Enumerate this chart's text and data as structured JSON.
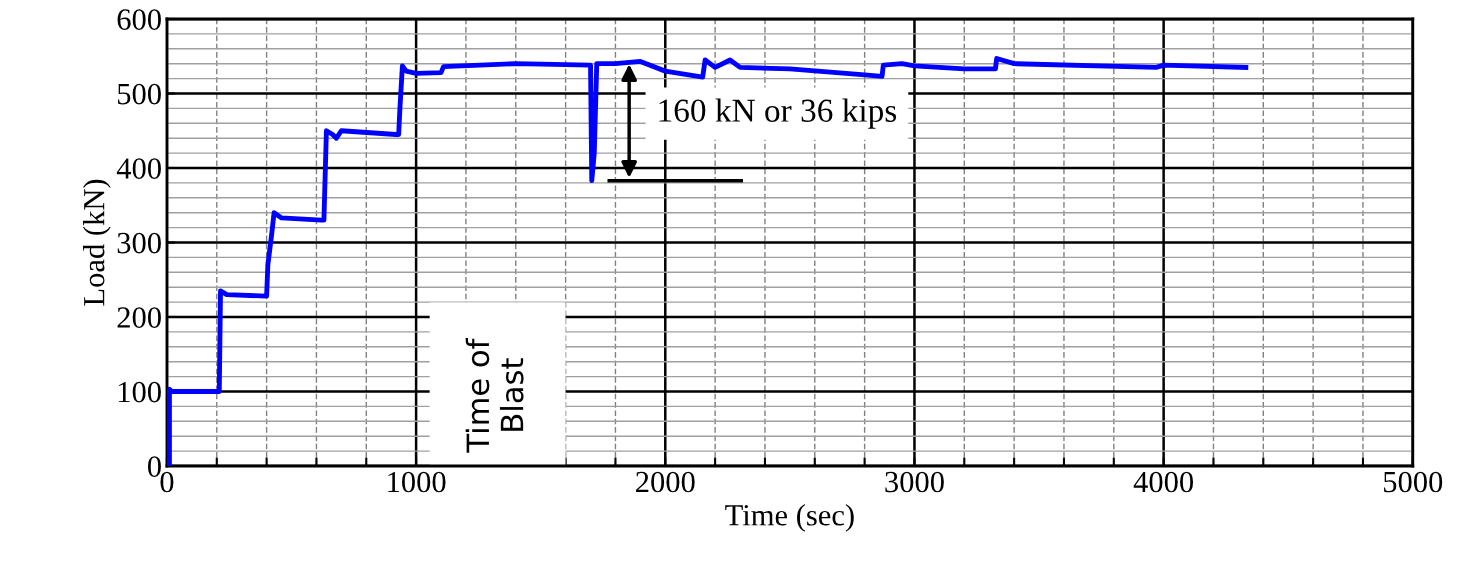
{
  "chart_data": {
    "type": "line",
    "xlabel": "Time (sec)",
    "ylabel": "Load (kN)",
    "xlim": [
      0,
      5000
    ],
    "ylim": [
      0,
      600
    ],
    "xticks": [
      0,
      {
        "value": 200,
        "label": null
      },
      {
        "value": 400,
        "label": null
      },
      {
        "value": 600,
        "label": null
      },
      {
        "value": 800,
        "label": null
      },
      1000,
      {
        "value": 1200,
        "label": null
      },
      {
        "value": 1400,
        "label": null
      },
      {
        "value": 1600,
        "label": null
      },
      {
        "value": 1800,
        "label": null
      },
      2000,
      {
        "value": 2200,
        "label": null
      },
      {
        "value": 2400,
        "label": null
      },
      {
        "value": 2600,
        "label": null
      },
      {
        "value": 2800,
        "label": null
      },
      3000,
      {
        "value": 3200,
        "label": null
      },
      {
        "value": 3400,
        "label": null
      },
      {
        "value": 3600,
        "label": null
      },
      {
        "value": 3800,
        "label": null
      },
      4000,
      {
        "value": 4200,
        "label": null
      },
      {
        "value": 4400,
        "label": null
      },
      {
        "value": 4600,
        "label": null
      },
      {
        "value": 4800,
        "label": null
      },
      5000
    ],
    "yticks": [
      0,
      100,
      200,
      300,
      400,
      500,
      600
    ],
    "grid": true,
    "marker": "none",
    "line_style": "solid",
    "series": [
      {
        "color": "#0000ff",
        "x": [
          0,
          10,
          10,
          20,
          210,
          215,
          240,
          400,
          405,
          420,
          430,
          460,
          620,
          630,
          640,
          665,
          680,
          700,
          920,
          930,
          935,
          945,
          960,
          1000,
          1100,
          1110,
          1400,
          1700,
          1705,
          1715,
          1725,
          1800,
          1900,
          2000,
          2150,
          2160,
          2200,
          2260,
          2300,
          2500,
          2800,
          2870,
          2875,
          2950,
          3000,
          3200,
          3325,
          3330,
          3400,
          3970,
          4000,
          4330
        ],
        "values": [
          0,
          0,
          103,
          100,
          100,
          235,
          230,
          228,
          270,
          310,
          340,
          333,
          330,
          330,
          450,
          445,
          440,
          450,
          445,
          445,
          480,
          537,
          530,
          527,
          528,
          536,
          540,
          538,
          383,
          420,
          540,
          540,
          543,
          530,
          522,
          545,
          535,
          545,
          535,
          533,
          525,
          523,
          538,
          540,
          537,
          533,
          533,
          547,
          540,
          535,
          538,
          535
        ]
      }
    ],
    "annotations": [
      "160 kN or 36 kips",
      "Time of\nBlast"
    ]
  }
}
